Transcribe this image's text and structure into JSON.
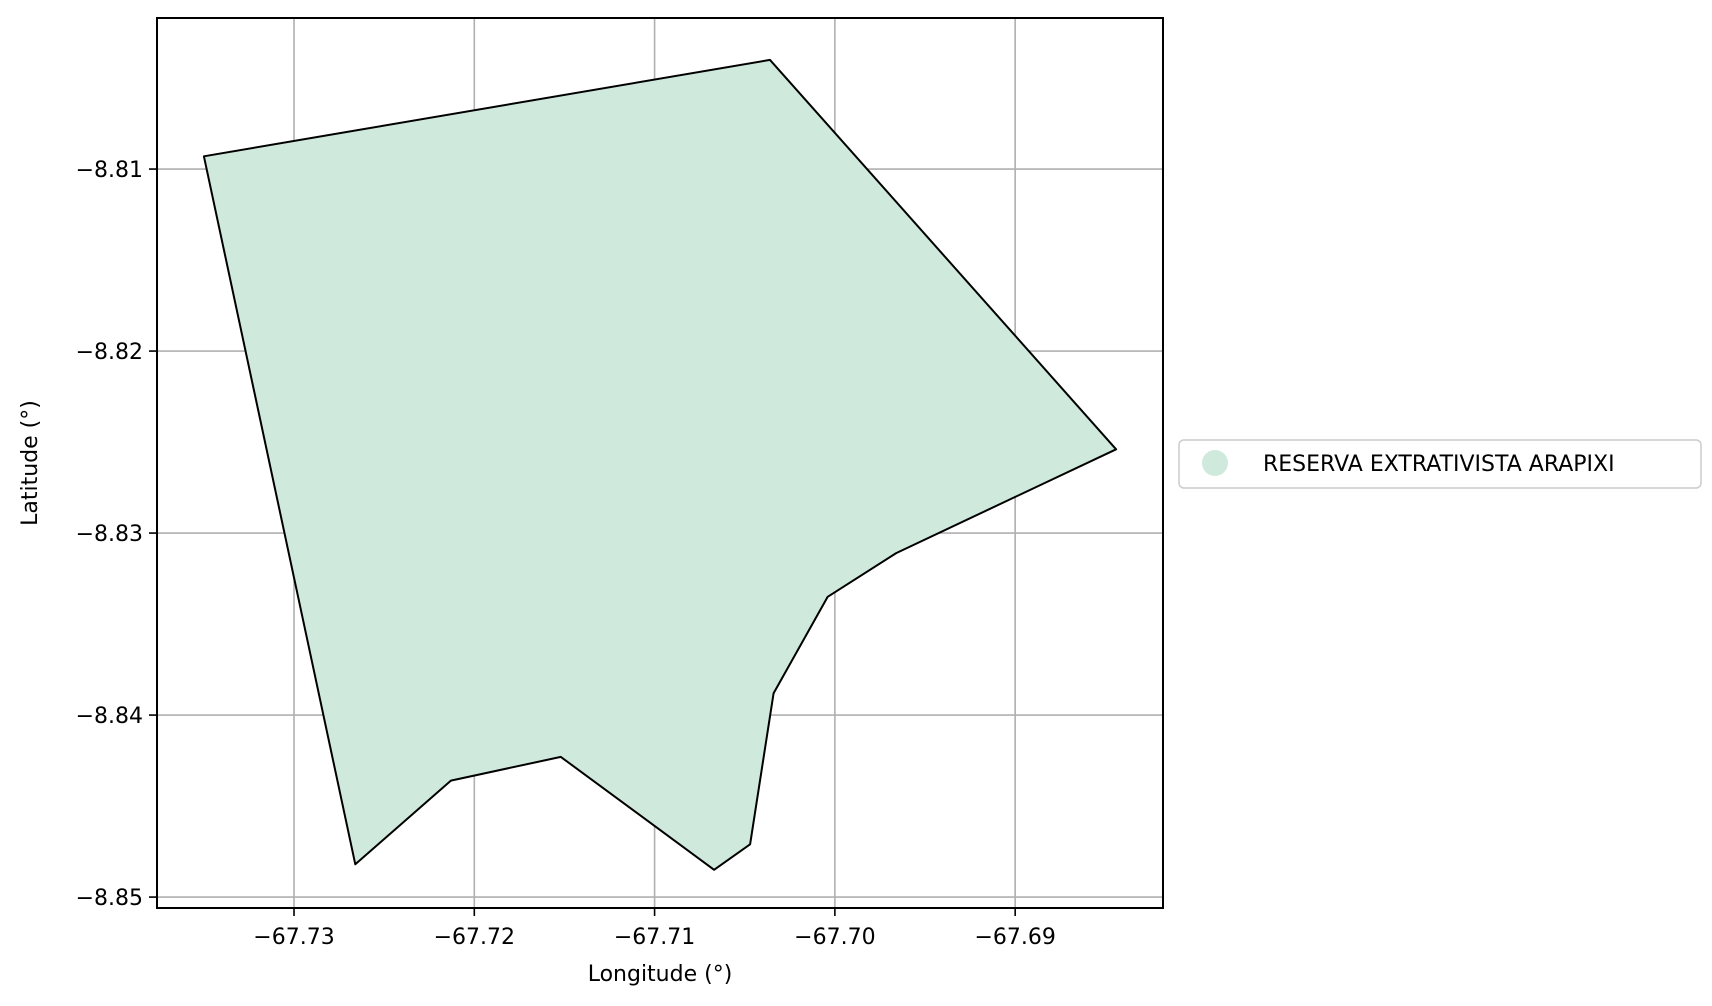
{
  "chart_data": {
    "type": "map",
    "xlabel": "Longitude (°)",
    "ylabel": "Latitude (°)",
    "xlim": [
      -67.7376,
      -67.6818
    ],
    "ylim": [
      -8.8506,
      -8.8017
    ],
    "xticks": [
      {
        "value": -67.73,
        "label": "−67.73"
      },
      {
        "value": -67.72,
        "label": "−67.72"
      },
      {
        "value": -67.71,
        "label": "−67.71"
      },
      {
        "value": -67.7,
        "label": "−67.70"
      },
      {
        "value": -67.69,
        "label": "−67.69"
      }
    ],
    "yticks": [
      {
        "value": -8.81,
        "label": "−8.81"
      },
      {
        "value": -8.82,
        "label": "−8.82"
      },
      {
        "value": -8.83,
        "label": "−8.83"
      },
      {
        "value": -8.84,
        "label": "−8.84"
      },
      {
        "value": -8.85,
        "label": "−8.85"
      }
    ],
    "grid": true,
    "legend_position": "right",
    "series": [
      {
        "name": "RESERVA EXTRATIVISTA ARAPIXI",
        "fill": "#cfeadd",
        "stroke": "#000000",
        "polygon": [
          [
            -67.735,
            -8.8093
          ],
          [
            -67.7036,
            -8.804
          ],
          [
            -67.6844,
            -8.8254
          ],
          [
            -67.6966,
            -8.8311
          ],
          [
            -67.7004,
            -8.8335
          ],
          [
            -67.7034,
            -8.8388
          ],
          [
            -67.7047,
            -8.8471
          ],
          [
            -67.7067,
            -8.8485
          ],
          [
            -67.7152,
            -8.8423
          ],
          [
            -67.7213,
            -8.8436
          ],
          [
            -67.7266,
            -8.8482
          ],
          [
            -67.735,
            -8.8093
          ]
        ]
      }
    ]
  }
}
